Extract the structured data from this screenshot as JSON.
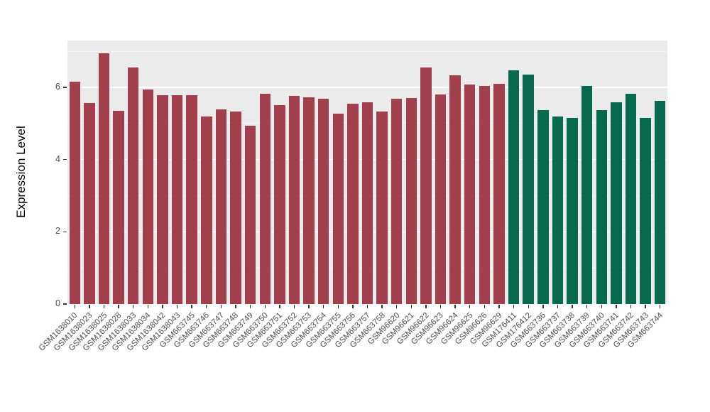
{
  "chart_data": {
    "type": "bar",
    "title": "",
    "xlabel": "",
    "ylabel": "Expression Level",
    "ylim": [
      0,
      7.3
    ],
    "yticks": [
      0,
      2,
      4,
      6
    ],
    "yminor": [
      1,
      3,
      5,
      7
    ],
    "grid": "white major and minor horizontal gridlines on gray panel (ggplot style)",
    "legend": "none",
    "panel_color": "#EBEBEB",
    "group_colors": [
      "#A23F4C",
      "#07694D"
    ],
    "categories": [
      "GSM1638010",
      "GSM1638023",
      "GSM1638025",
      "GSM1638028",
      "GSM1638033",
      "GSM1638034",
      "GSM1638042",
      "GSM1638043",
      "GSM663745",
      "GSM663746",
      "GSM663747",
      "GSM663748",
      "GSM663749",
      "GSM663750",
      "GSM663751",
      "GSM663752",
      "GSM663753",
      "GSM663754",
      "GSM663755",
      "GSM663756",
      "GSM663757",
      "GSM663758",
      "GSM96620",
      "GSM96621",
      "GSM96622",
      "GSM96623",
      "GSM96624",
      "GSM96625",
      "GSM96626",
      "GSM96629",
      "GSM176411",
      "GSM176412",
      "GSM663736",
      "GSM663737",
      "GSM663738",
      "GSM663739",
      "GSM663740",
      "GSM663741",
      "GSM663742",
      "GSM663743",
      "GSM663744"
    ],
    "values": [
      6.15,
      5.57,
      6.95,
      5.35,
      6.55,
      5.95,
      5.78,
      5.78,
      5.78,
      5.2,
      5.4,
      5.33,
      4.93,
      5.83,
      5.5,
      5.77,
      5.72,
      5.68,
      5.28,
      5.55,
      5.58,
      5.33,
      5.68,
      5.7,
      6.55,
      5.8,
      6.33,
      6.08,
      6.05,
      6.1,
      6.48,
      6.35,
      5.37,
      5.2,
      5.15,
      6.05,
      5.37,
      5.58,
      5.83,
      5.15,
      5.63
    ],
    "bar_group": [
      0,
      0,
      0,
      0,
      0,
      0,
      0,
      0,
      0,
      0,
      0,
      0,
      0,
      0,
      0,
      0,
      0,
      0,
      0,
      0,
      0,
      0,
      0,
      0,
      0,
      0,
      0,
      0,
      0,
      0,
      1,
      1,
      1,
      1,
      1,
      1,
      1,
      1,
      1,
      1,
      1
    ]
  }
}
